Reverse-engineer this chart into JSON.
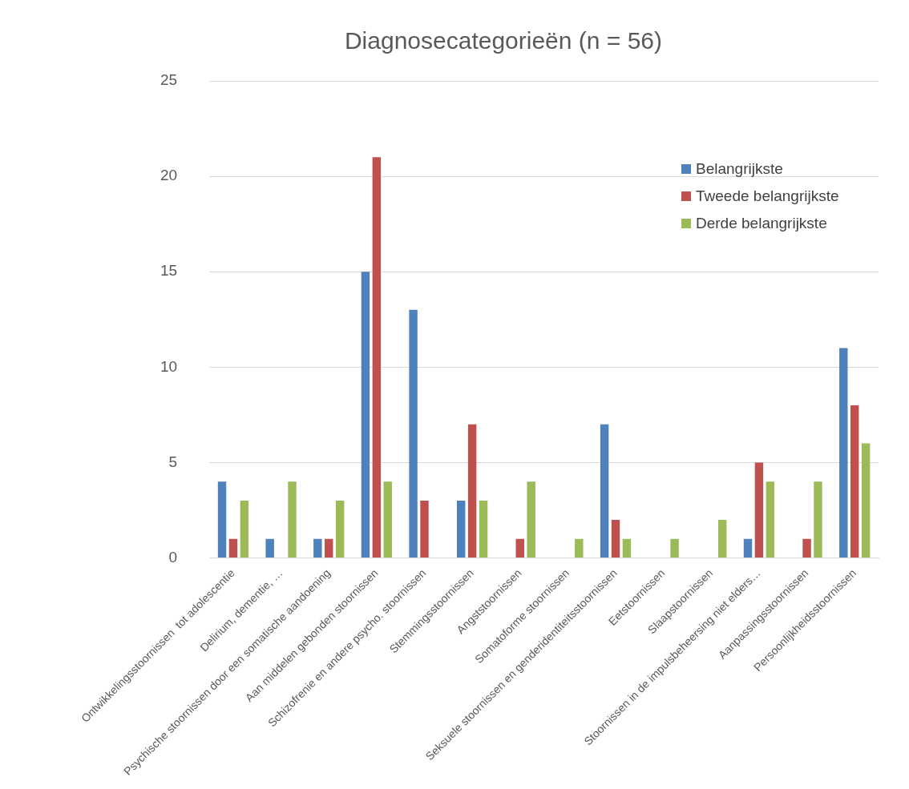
{
  "chart_data": {
    "type": "bar",
    "title": "Diagnosecategorieën (n = 56)",
    "categories": [
      "Ontwikkelingsstoornissen  tot adolescentie",
      "Delirium, dementie, …",
      "Psychische stoornissen door een somatische aandoening",
      "Aan middelen gebonden stoornissen",
      "Schizofrenie en andere psycho. stoornissen",
      "Stemmingsstoornissen",
      "Angststoornissen",
      "Somatoforme stoornissen",
      "Seksuele stoornissen en genderidentiteitsstoornissen",
      "Eetstoornissen",
      "Slaapstoornissen",
      "Stoornissen in de impulsbeheersing niet elders…",
      "Aanpassingsstoornissen",
      "Persoonlijkheidsstoornissen"
    ],
    "series": [
      {
        "name": "Belangrijkste",
        "color": "#4f81bd",
        "values": [
          4,
          1,
          1,
          15,
          13,
          3,
          0,
          0,
          7,
          0,
          0,
          1,
          0,
          11
        ]
      },
      {
        "name": "Tweede belangrijkste",
        "color": "#c0504d",
        "values": [
          1,
          0,
          1,
          21,
          3,
          7,
          1,
          0,
          2,
          0,
          0,
          5,
          1,
          8
        ]
      },
      {
        "name": "Derde belangrijkste",
        "color": "#9bbb59",
        "values": [
          3,
          4,
          3,
          4,
          0,
          3,
          4,
          1,
          1,
          1,
          2,
          4,
          4,
          6
        ]
      }
    ],
    "ylim": [
      0,
      25
    ],
    "yticks": [
      0,
      5,
      10,
      15,
      20,
      25
    ],
    "grid": "y",
    "legend": "top right"
  }
}
